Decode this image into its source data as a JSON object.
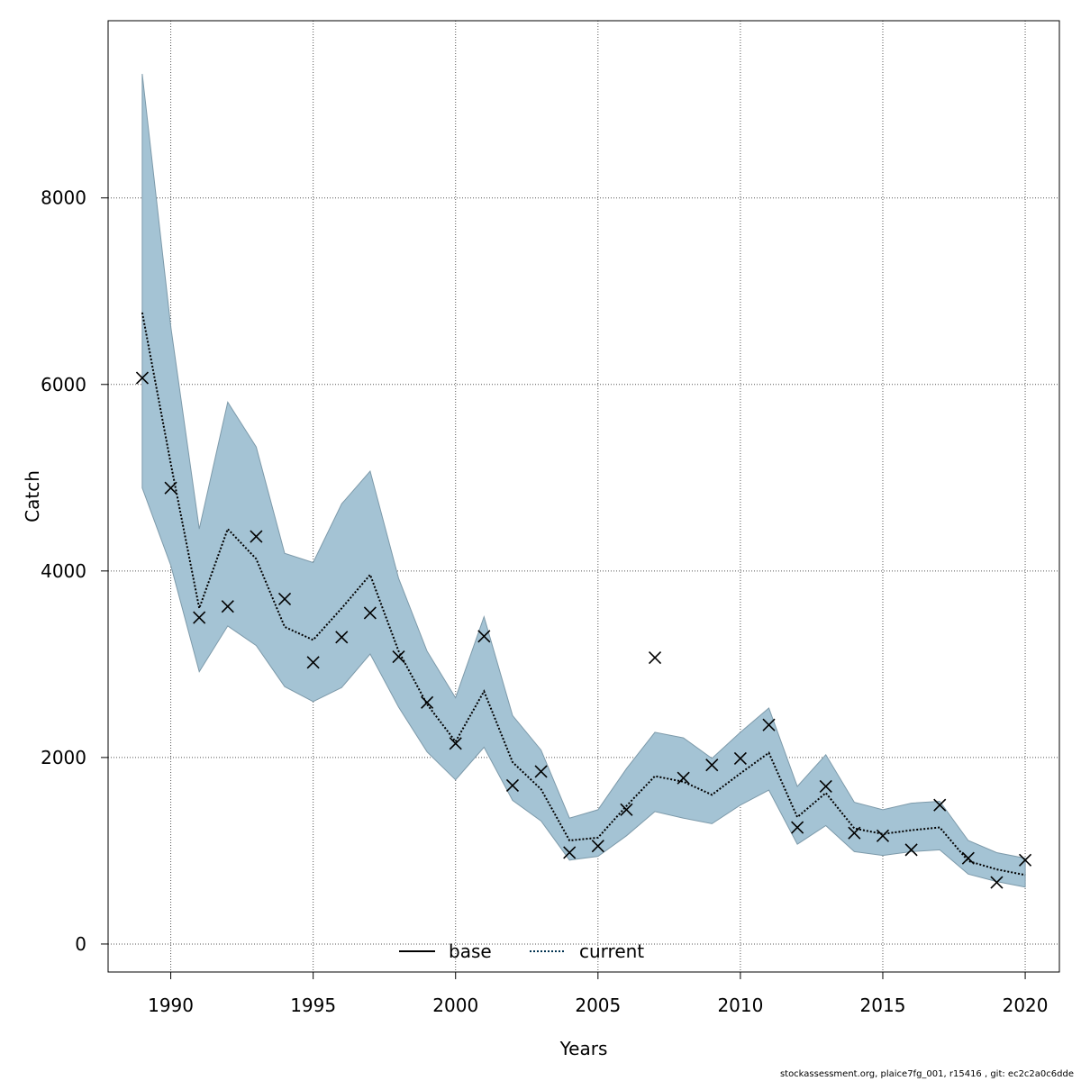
{
  "chart_data": {
    "type": "line",
    "title": "",
    "xlabel": "Years",
    "ylabel": "Catch",
    "xlim": [
      1987.8,
      2021.2
    ],
    "ylim": [
      -300,
      9900
    ],
    "grid": true,
    "x_ticks": [
      1990,
      1995,
      2000,
      2005,
      2010,
      2015,
      2020
    ],
    "y_ticks": [
      0,
      2000,
      4000,
      6000,
      8000
    ],
    "legend": {
      "placement": "bottom-center",
      "entries": [
        "base",
        "current"
      ]
    },
    "x": [
      1989,
      1990,
      1991,
      1992,
      1993,
      1994,
      1995,
      1996,
      1997,
      1998,
      1999,
      2000,
      2001,
      2002,
      2003,
      2004,
      2005,
      2006,
      2007,
      2008,
      2009,
      2010,
      2011,
      2012,
      2013,
      2014,
      2015,
      2016,
      2017,
      2018,
      2019,
      2020
    ],
    "series": [
      {
        "name": "current",
        "style": "dotted",
        "values": [
          6770,
          5150,
          3600,
          4450,
          4130,
          3400,
          3260,
          3600,
          3960,
          3140,
          2570,
          2170,
          2710,
          1950,
          1660,
          1110,
          1140,
          1480,
          1800,
          1740,
          1600,
          1830,
          2050,
          1360,
          1620,
          1240,
          1180,
          1220,
          1250,
          890,
          800,
          740
        ]
      },
      {
        "name": "ci_upper",
        "values": [
          9330,
          6620,
          4450,
          5810,
          5330,
          4190,
          4090,
          4720,
          5070,
          3920,
          3140,
          2640,
          3510,
          2450,
          2080,
          1350,
          1440,
          1880,
          2270,
          2210,
          1990,
          2270,
          2530,
          1690,
          2030,
          1520,
          1440,
          1510,
          1530,
          1110,
          980,
          920
        ]
      },
      {
        "name": "ci_lower",
        "values": [
          4890,
          4060,
          2920,
          3410,
          3200,
          2760,
          2600,
          2750,
          3110,
          2540,
          2060,
          1760,
          2110,
          1540,
          1320,
          900,
          940,
          1160,
          1420,
          1350,
          1290,
          1490,
          1650,
          1070,
          1270,
          990,
          950,
          990,
          1010,
          750,
          670,
          610
        ]
      },
      {
        "name": "observed",
        "values": [
          6070,
          4890,
          3500,
          3620,
          4370,
          3700,
          3020,
          3290,
          3550,
          3080,
          2590,
          2150,
          3300,
          1700,
          1850,
          980,
          1050,
          1440,
          3070,
          1780,
          1920,
          1990,
          2350,
          1250,
          1690,
          1190,
          1160,
          1010,
          1490,
          920,
          660,
          900
        ]
      }
    ],
    "colors": {
      "band": "#a4c3d4",
      "band_edge": "#7d9aaa",
      "line": "#000000",
      "current_line": "#00314f",
      "grid": "#555555"
    },
    "footer": "stockassessment.org, plaice7fg_001, r15416 , git: ec2c2a0c6dde"
  }
}
